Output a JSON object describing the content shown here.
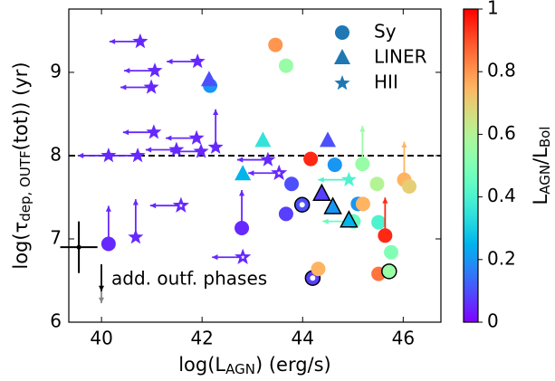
{
  "chart_data": {
    "type": "scatter",
    "xlabel": [
      "log(L",
      "AGN",
      ") (erg/s)"
    ],
    "ylabel": [
      "log(τ",
      "dep, OUTF",
      "(tot)) (yr)"
    ],
    "xlim": [
      39.35,
      46.75
    ],
    "ylim": [
      6,
      9.76
    ],
    "xticks": [
      40,
      42,
      44,
      46
    ],
    "yticks": [
      6,
      7,
      8,
      9
    ],
    "hline": 8,
    "legend": "upper right",
    "colorbar": {
      "label": [
        "L",
        "AGN",
        "/L",
        "Bol"
      ],
      "lim": [
        0,
        1
      ],
      "ticks": [
        0,
        0.2,
        0.4,
        0.6,
        0.8,
        1
      ],
      "cmap": "rainbow"
    },
    "series": [
      {
        "name": "Sy",
        "marker": "circle",
        "color": "#1f77b4",
        "x": [
          42.16,
          43.46,
          43.67,
          44.16,
          43.78,
          43.67,
          43.99,
          42.79,
          40.14,
          44.2,
          44.31,
          44.64,
          45.19,
          45.1,
          45.2,
          45.01,
          45.51,
          45.64,
          45.76,
          45.51,
          45.72,
          46.02,
          46.12,
          45.48
        ],
        "values": [
          8.84,
          9.33,
          9.08,
          7.96,
          7.66,
          7.3,
          7.41,
          7.13,
          6.94,
          6.53,
          6.64,
          7.89,
          7.9,
          7.42,
          7.42,
          7.21,
          7.2,
          7.04,
          6.84,
          6.58,
          6.61,
          7.71,
          7.63,
          7.66
        ],
        "c": [
          0.2,
          0.8,
          0.55,
          0.95,
          0.1,
          0.08,
          0.1,
          0.05,
          0.05,
          0.08,
          0.75,
          0.2,
          0.55,
          0.2,
          0.75,
          0.45,
          0.4,
          0.95,
          0.5,
          0.85,
          0.55,
          0.75,
          0.7,
          0.6
        ],
        "limit": [
          null,
          null,
          null,
          null,
          null,
          null,
          null,
          "up",
          "up",
          null,
          null,
          null,
          "up",
          null,
          null,
          "left",
          null,
          "up",
          null,
          null,
          null,
          "up",
          null,
          null
        ],
        "style": [
          "filled",
          "filled",
          "filled",
          "filled",
          "filled",
          "filled",
          "ring",
          "filled",
          "filled",
          "ring",
          "filled",
          "filled",
          "filled",
          "filled",
          "filled",
          "filled",
          "filled",
          "filled",
          "filled",
          "filled",
          "edged",
          "filled",
          "filled",
          "filled"
        ]
      },
      {
        "name": "LINER",
        "marker": "triangle",
        "color": "#1f77b4",
        "x": [
          42.14,
          43.21,
          42.81,
          44.5,
          44.38,
          44.6,
          44.92
        ],
        "values": [
          8.91,
          8.18,
          7.78,
          8.18,
          7.54,
          7.38,
          7.22
        ],
        "c": [
          0.1,
          0.35,
          0.25,
          0.1,
          0.08,
          0.2,
          0.25
        ],
        "limit": [
          null,
          null,
          null,
          null,
          null,
          null,
          null
        ],
        "style": [
          "filled",
          "filled",
          "filled",
          "filled",
          "edged",
          "edged",
          "edged"
        ]
      },
      {
        "name": "HII",
        "marker": "star",
        "color": "#1f77b4",
        "x": [
          40.77,
          41.06,
          41.91,
          40.99,
          41.04,
          41.89,
          41.49,
          41.98,
          42.27,
          40.14,
          40.72,
          43.31,
          40.68,
          41.58,
          42.81,
          43.53,
          44.92
        ],
        "values": [
          9.37,
          9.02,
          9.13,
          8.82,
          8.28,
          8.21,
          8.07,
          8.05,
          8.1,
          8.0,
          8.0,
          7.95,
          7.02,
          7.4,
          6.78,
          7.79,
          7.71
        ],
        "c": [
          0.05,
          0.05,
          0.05,
          0.05,
          0.05,
          0.05,
          0.05,
          0.05,
          0.05,
          0.05,
          0.05,
          0.05,
          0.05,
          0.05,
          0.05,
          0.05,
          0.4
        ],
        "limit": [
          "left",
          "left",
          "left",
          "left",
          "left",
          "left",
          "left",
          "left",
          "up",
          "left",
          "left",
          "left",
          "up",
          "left",
          "left",
          "left",
          "left"
        ],
        "style": [
          "filled",
          "filled",
          "filled",
          "filled",
          "filled",
          "filled",
          "filled",
          "filled",
          "filled",
          "filled",
          "filled",
          "filled",
          "filled",
          "open",
          "open",
          "open",
          "filled"
        ]
      }
    ],
    "errorbar": {
      "x": 39.55,
      "y": 6.9,
      "xerr": 0.37,
      "yerr": 0.31
    },
    "annotation": "add. outf. phases"
  }
}
